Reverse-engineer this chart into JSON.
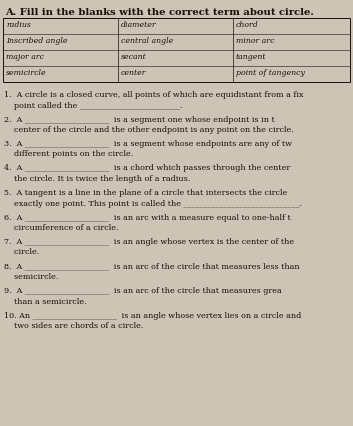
{
  "title": "A. Fill in the blanks with the correct term about circle.",
  "word_bank": [
    [
      "radius",
      "diameter",
      "chord"
    ],
    [
      "Inscribed angle",
      "central angle",
      "minor arc"
    ],
    [
      "major arc",
      "secant",
      "tangent"
    ],
    [
      "semicircle",
      "center",
      "point of tangency"
    ]
  ],
  "bg_color": "#ccc4b4",
  "text_color": "#1a1008",
  "title_fontsize": 7.2,
  "body_fontsize": 5.8,
  "table_fontsize": 5.6,
  "question_blocks": [
    [
      "1.  A circle is a closed curve, all points of which are equidistant from a fix",
      "    point called the _________________________."
    ],
    [
      "2.  A _____________________  is a segment one whose endpoint is in t",
      "    center of the circle and the other endpoint is any point on the circle."
    ],
    [
      "3.  A _____________________  is a segment whose endpoints are any of tw",
      "    different points on the circle."
    ],
    [
      "4.  A _____________________  is a chord which passes through the center",
      "    the circle. It is twice the length of a radius."
    ],
    [
      "5.  A tangent is a line in the plane of a circle that intersects the circle",
      "    exactly one point. This point is called the _____________________________."
    ],
    [
      "6.  A _____________________  is an arc with a measure equal to one-half t",
      "    circumference of a circle."
    ],
    [
      "7.  A _____________________  is an angle whose vertex is the center of the",
      "    circle."
    ],
    [
      "8.  A _____________________  is an arc of the circle that measures less than",
      "    semicircle."
    ],
    [
      "9.  A _____________________  is an arc of the circle that measures grea",
      "    than a semicircle."
    ],
    [
      "10. An _____________________  is an angle whose vertex lies on a circle and",
      "    two sides are chords of a circle."
    ]
  ]
}
